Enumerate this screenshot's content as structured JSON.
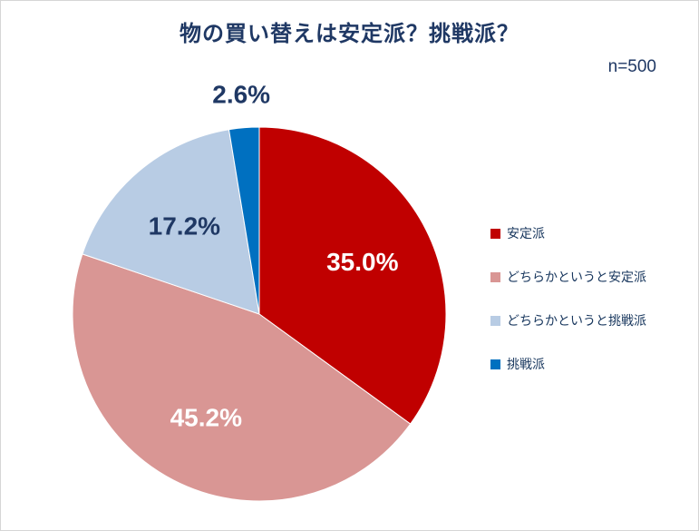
{
  "chart": {
    "title": "物の買い替えは安定派？挑戦派？",
    "sample_size_label": "n=500"
  },
  "chart_data": {
    "type": "pie",
    "title": "物の買い替えは安定派？挑戦派？",
    "sample_size": "n=500",
    "labels": [
      "安定派",
      "どちらかというと安定派",
      "どちらかというと挑戦派",
      "挑戦派"
    ],
    "values": [
      35.0,
      45.2,
      17.2,
      2.6
    ],
    "value_labels": [
      "35.0%",
      "45.2%",
      "17.2%",
      "2.6%"
    ],
    "colors": [
      "#c00000",
      "#d99694",
      "#b8cce4",
      "#0070c0"
    ],
    "label_colors": [
      "#ffffff",
      "#ffffff",
      "#1f3864",
      "#1f3864"
    ],
    "label_placement": [
      "inside",
      "inside",
      "inside",
      "outside"
    ],
    "start_angle_deg": 0,
    "direction": "clockwise",
    "legend_position": "right",
    "title_color": "#1f3864",
    "total": 100
  }
}
